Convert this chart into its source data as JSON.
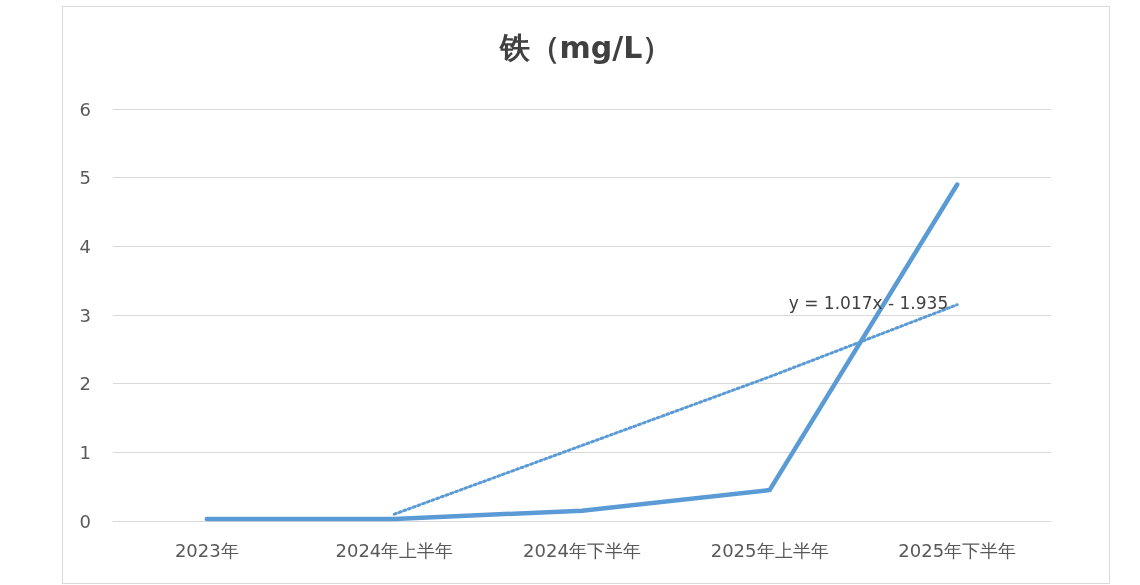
{
  "chart_data": {
    "type": "line",
    "title": "铁（mg/L）",
    "categories": [
      "2023年",
      "2024年上半年",
      "2024年下半年",
      "2025年上半年",
      "2025年下半年"
    ],
    "series": [
      {
        "color": "#5b9bd5",
        "values": [
          0.03,
          0.03,
          0.15,
          0.45,
          4.9
        ]
      },
      {
        "color": "#5b9bd5",
        "line_style": "dotted",
        "values": [
          null,
          0.1,
          1.1,
          2.1,
          3.15
        ]
      }
    ],
    "annotations": [
      {
        "text": "y = 1.017x - 1.935",
        "x": "2025年下半年",
        "y": 3.15
      }
    ],
    "ylim": [
      0,
      6
    ],
    "yticks": [
      0,
      1,
      2,
      3,
      4,
      5,
      6
    ],
    "grid": "y",
    "marker": "none"
  }
}
